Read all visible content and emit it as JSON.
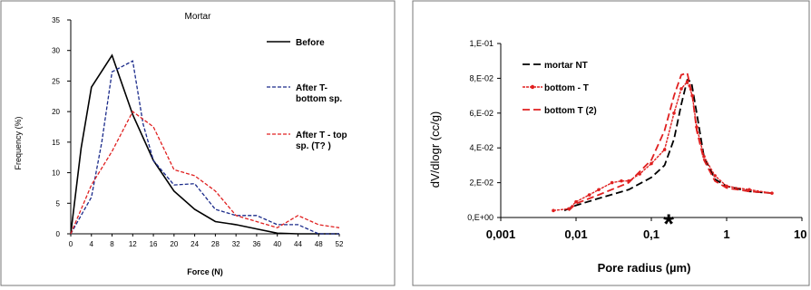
{
  "chart_data": [
    {
      "type": "line",
      "title": "Mortar",
      "xlabel": "Force (N)",
      "ylabel": "Frequency (%)",
      "x": [
        0,
        4,
        8,
        12,
        16,
        20,
        24,
        28,
        32,
        36,
        40,
        44,
        48,
        52
      ],
      "x_ticks": [
        "0",
        "4",
        "8",
        "12",
        "16",
        "20",
        "24",
        "28",
        "32",
        "36",
        "40",
        "44",
        "48",
        "52"
      ],
      "y_ticks": [
        "0",
        "5",
        "10",
        "15",
        "20",
        "25",
        "30",
        "35"
      ],
      "xlim": [
        0,
        52
      ],
      "ylim": [
        0,
        35
      ],
      "series": [
        {
          "name": "Before",
          "color": "#000000",
          "dash": "solid",
          "x": [
            0,
            2,
            4,
            8,
            12,
            16,
            20,
            24,
            28,
            32,
            36,
            40,
            44,
            48,
            52
          ],
          "values": [
            0,
            14,
            24,
            29.2,
            19.5,
            12,
            7,
            4,
            2,
            1.5,
            0.8,
            0.1,
            0,
            0,
            0
          ]
        },
        {
          "name": "After T-\nbottom sp.",
          "color": "#1a2a8a",
          "dash": "dashed",
          "x": [
            0,
            4,
            6,
            8,
            12,
            14,
            16,
            20,
            24,
            28,
            32,
            36,
            40,
            44,
            48,
            52
          ],
          "values": [
            0,
            6,
            15,
            26.5,
            28.3,
            18,
            12,
            8,
            8.2,
            4,
            3,
            3,
            1.5,
            1.5,
            0,
            0
          ]
        },
        {
          "name": "After T - top\nsp. (T? )",
          "color": "#e02020",
          "dash": "dashed",
          "x": [
            0,
            4,
            8,
            12,
            16,
            20,
            24,
            28,
            32,
            36,
            40,
            44,
            48,
            52
          ],
          "values": [
            0,
            8,
            13.5,
            20,
            17.5,
            10.5,
            9.5,
            7,
            3,
            2,
            1,
            3,
            1.5,
            1
          ]
        }
      ],
      "legend": "right"
    },
    {
      "type": "line",
      "xlabel": "Pore radius (µm)",
      "ylabel": "dV/dlogr (cc/g)",
      "x_scale": "log",
      "xlim": [
        0.001,
        10
      ],
      "ylim": [
        0,
        0.1
      ],
      "x_ticks": [
        "0,001",
        "0,01",
        "0,1",
        "1",
        "10"
      ],
      "x_tick_values": [
        0.001,
        0.01,
        0.1,
        1,
        10
      ],
      "y_ticks": [
        "0,E+00",
        "2,E-02",
        "4,E-02",
        "6,E-02",
        "8,E-02",
        "1,E-01"
      ],
      "annotation": "*",
      "annotation_x": 0.17,
      "series": [
        {
          "name": "mortar NT",
          "color": "#000000",
          "dash": "longdash",
          "x": [
            0.007,
            0.01,
            0.02,
            0.05,
            0.1,
            0.15,
            0.2,
            0.25,
            0.3,
            0.34,
            0.4,
            0.5,
            0.7,
            1,
            2,
            4
          ],
          "values": [
            0.004,
            0.007,
            0.011,
            0.016,
            0.023,
            0.03,
            0.045,
            0.065,
            0.079,
            0.078,
            0.06,
            0.035,
            0.022,
            0.018,
            0.015,
            0.014
          ]
        },
        {
          "name": "bottom - T",
          "color": "#e02020",
          "dash": "markers",
          "x": [
            0.005,
            0.008,
            0.01,
            0.015,
            0.02,
            0.03,
            0.04,
            0.05,
            0.07,
            0.1,
            0.15,
            0.2,
            0.25,
            0.3,
            0.35,
            0.4,
            0.5,
            0.7,
            1,
            2,
            4
          ],
          "values": [
            0.004,
            0.005,
            0.009,
            0.013,
            0.016,
            0.02,
            0.021,
            0.021,
            0.025,
            0.031,
            0.039,
            0.06,
            0.074,
            0.078,
            0.07,
            0.052,
            0.035,
            0.024,
            0.018,
            0.016,
            0.014
          ]
        },
        {
          "name": "bottom T (2)",
          "color": "#e02020",
          "dash": "longdash",
          "x": [
            0.008,
            0.01,
            0.02,
            0.05,
            0.1,
            0.15,
            0.2,
            0.25,
            0.3,
            0.35,
            0.4,
            0.5,
            0.7,
            1,
            2,
            4
          ],
          "values": [
            0.004,
            0.008,
            0.013,
            0.02,
            0.033,
            0.05,
            0.07,
            0.082,
            0.083,
            0.07,
            0.05,
            0.033,
            0.021,
            0.017,
            0.015,
            0.014
          ]
        }
      ],
      "legend": "top-left"
    }
  ]
}
